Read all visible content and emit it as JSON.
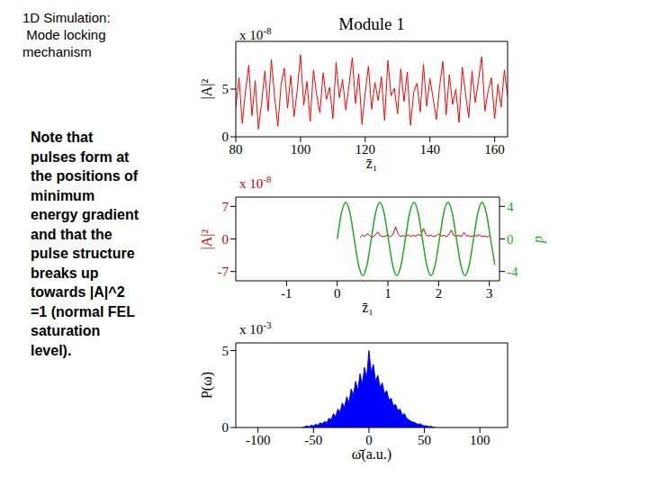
{
  "heading": [
    "1D Simulation:",
    " Mode locking",
    "mechanism"
  ],
  "note": [
    "Note that",
    "pulses form at",
    "the positions of",
    "minimum",
    "energy gradient",
    "and that the",
    "pulse structure",
    "breaks up",
    "towards |A|^2",
    "=1 (normal FEL",
    "saturation",
    "level)."
  ],
  "chart_data": [
    {
      "type": "line",
      "title": "Module 1",
      "y_label": "|A|²",
      "y_scale_text": "x 10",
      "y_scale_exp": "-8",
      "x_label": "z̄₁",
      "xlim": [
        80,
        164
      ],
      "xticks": [
        80,
        100,
        120,
        140,
        160
      ],
      "ylim": [
        0,
        10
      ],
      "yticks": [
        0,
        5
      ],
      "series": [
        {
          "color": "#ff0000",
          "x": [
            80,
            81,
            82,
            83,
            84,
            85,
            86,
            87,
            88,
            89,
            90,
            91,
            92,
            93,
            94,
            95,
            96,
            97,
            98,
            99,
            100,
            101,
            102,
            103,
            104,
            105,
            106,
            107,
            108,
            109,
            110,
            111,
            112,
            113,
            114,
            115,
            116,
            117,
            118,
            119,
            120,
            121,
            122,
            123,
            124,
            125,
            126,
            127,
            128,
            129,
            130,
            131,
            132,
            133,
            134,
            135,
            136,
            137,
            138,
            139,
            140,
            141,
            142,
            143,
            144,
            145,
            146,
            147,
            148,
            149,
            150,
            151,
            152,
            153,
            154,
            155,
            156,
            157,
            158,
            159,
            160,
            161,
            162,
            163,
            164
          ],
          "values": [
            3.1,
            6.2,
            1.4,
            4.8,
            7.5,
            2.2,
            5.9,
            0.8,
            3.6,
            6.9,
            2.7,
            8.1,
            4.2,
            1.1,
            5.5,
            7.2,
            3.0,
            6.4,
            2.1,
            4.9,
            8.6,
            3.3,
            5.8,
            1.6,
            7.0,
            4.4,
            2.5,
            6.7,
            3.9,
            5.2,
            1.9,
            7.8,
            4.1,
            6.0,
            2.8,
            5.4,
            8.3,
            3.5,
            6.6,
            1.3,
            4.6,
            7.4,
            2.9,
            5.7,
            3.8,
            6.3,
            1.7,
            8.0,
            4.3,
            5.1,
            2.4,
            7.1,
            3.7,
            6.8,
            1.2,
            4.7,
            5.6,
            2.6,
            7.6,
            3.2,
            6.1,
            4.0,
            1.8,
            5.3,
            7.9,
            2.3,
            6.5,
            3.4,
            5.0,
            1.5,
            7.3,
            4.5,
            2.0,
            6.9,
            3.6,
            5.9,
            8.4,
            2.7,
            4.8,
            6.2,
            1.9,
            5.5,
            3.1,
            7.0,
            4.2
          ]
        }
      ]
    },
    {
      "type": "line",
      "y_label": "|A|²",
      "y2_label": "p",
      "y_scale_text": "x 10",
      "y_scale_exp": "-8",
      "x_label": "z̄₁",
      "xlim": [
        -2,
        3.2
      ],
      "xticks": [
        -1,
        0,
        1,
        2,
        3
      ],
      "ylim": [
        -9,
        9
      ],
      "yticks": [
        -7,
        0,
        7
      ],
      "y2lim": [
        -5.14,
        5.14
      ],
      "y2ticks": [
        -4,
        0,
        4
      ],
      "series": [
        {
          "color": "#cc0000",
          "x": [
            0.45,
            0.5,
            0.55,
            0.6,
            0.65,
            0.7,
            0.75,
            0.8,
            0.85,
            0.9,
            0.95,
            1.0,
            1.05,
            1.1,
            1.15,
            1.2,
            1.25,
            1.3,
            1.35,
            1.4,
            1.45,
            1.5,
            1.55,
            1.6,
            1.65,
            1.7,
            1.75,
            1.8,
            1.85,
            1.9,
            1.95,
            2.0,
            2.05,
            2.1,
            2.15,
            2.2,
            2.25,
            2.3,
            2.35,
            2.4,
            2.45,
            2.5,
            2.55,
            2.6,
            2.65,
            2.7,
            2.75,
            2.8,
            2.85,
            2.9,
            2.95,
            3.0
          ],
          "values": [
            0.3,
            0.9,
            0.5,
            1.2,
            0.6,
            0.4,
            0.8,
            1.5,
            0.7,
            0.5,
            0.6,
            0.9,
            0.4,
            1.0,
            2.6,
            1.1,
            0.5,
            0.7,
            0.6,
            0.9,
            0.5,
            0.8,
            0.6,
            1.0,
            0.7,
            2.3,
            0.9,
            0.6,
            0.8,
            0.5,
            0.7,
            1.1,
            0.6,
            0.8,
            0.5,
            0.9,
            1.9,
            0.7,
            0.6,
            0.8,
            0.5,
            1.4,
            0.6,
            0.7,
            0.5,
            0.8,
            0.6,
            0.9,
            0.5,
            0.7,
            0.4,
            0.6
          ]
        },
        {
          "color": "#22aa22",
          "axis": "y2",
          "x": [
            0,
            0.084,
            0.168,
            0.252,
            0.336,
            0.42,
            0.504,
            0.588,
            0.672,
            0.756,
            0.84,
            0.924,
            1.008,
            1.092,
            1.176,
            1.26,
            1.344,
            1.428,
            1.512,
            1.596,
            1.68,
            1.764,
            1.848,
            1.932,
            2.016,
            2.1,
            2.184,
            2.268,
            2.352,
            2.436,
            2.52,
            2.604,
            2.688,
            2.772,
            2.856,
            2.94,
            3.024,
            3.108
          ],
          "values": [
            0,
            3.18,
            4.5,
            3.18,
            0,
            -3.18,
            -4.5,
            -3.18,
            0,
            3.18,
            4.5,
            3.18,
            0,
            -3.18,
            -4.5,
            -3.18,
            0,
            3.18,
            4.5,
            3.18,
            0,
            -3.18,
            -4.5,
            -3.18,
            0,
            3.18,
            4.5,
            3.18,
            0,
            -3.18,
            -4.5,
            -3.18,
            0,
            3.18,
            4.5,
            3.18,
            0,
            -3.18
          ]
        }
      ]
    },
    {
      "type": "area",
      "y_label": "P(ω)",
      "y_scale_text": "x 10",
      "y_scale_exp": "-3",
      "x_label": "ω̄(a.u.)",
      "xlim": [
        -120,
        125
      ],
      "xticks": [
        -100,
        -50,
        0,
        50,
        100
      ],
      "ylim": [
        0,
        5.5
      ],
      "yticks": [
        0,
        5
      ],
      "series": [
        {
          "color": "#0000ff",
          "x": [
            -60,
            -58,
            -56,
            -54,
            -52,
            -50,
            -48,
            -46,
            -44,
            -42,
            -40,
            -38,
            -36,
            -34,
            -32,
            -30,
            -28,
            -26,
            -24,
            -22,
            -20,
            -18,
            -16,
            -14,
            -12,
            -10,
            -8,
            -6,
            -4,
            -2,
            0,
            2,
            4,
            6,
            8,
            10,
            12,
            14,
            16,
            18,
            20,
            22,
            24,
            26,
            28,
            30,
            32,
            34,
            36,
            38,
            40,
            42,
            44,
            46,
            48,
            50,
            52,
            54,
            56,
            58,
            60
          ],
          "values": [
            0,
            0.05,
            0.1,
            0.05,
            0.15,
            0.1,
            0.2,
            0.15,
            0.3,
            0.25,
            0.4,
            0.3,
            0.6,
            0.5,
            0.9,
            0.7,
            1.2,
            1.0,
            1.6,
            1.3,
            2.0,
            1.6,
            2.5,
            2.1,
            3.0,
            2.4,
            3.5,
            2.8,
            3.9,
            3.2,
            5.0,
            3.6,
            4.1,
            3.0,
            3.4,
            2.6,
            2.9,
            2.2,
            2.4,
            1.8,
            1.9,
            1.4,
            1.5,
            1.1,
            1.2,
            0.8,
            0.9,
            0.6,
            0.5,
            0.4,
            0.35,
            0.3,
            0.2,
            0.25,
            0.15,
            0.1,
            0.12,
            0.05,
            0.08,
            0.02,
            0
          ]
        }
      ]
    }
  ]
}
